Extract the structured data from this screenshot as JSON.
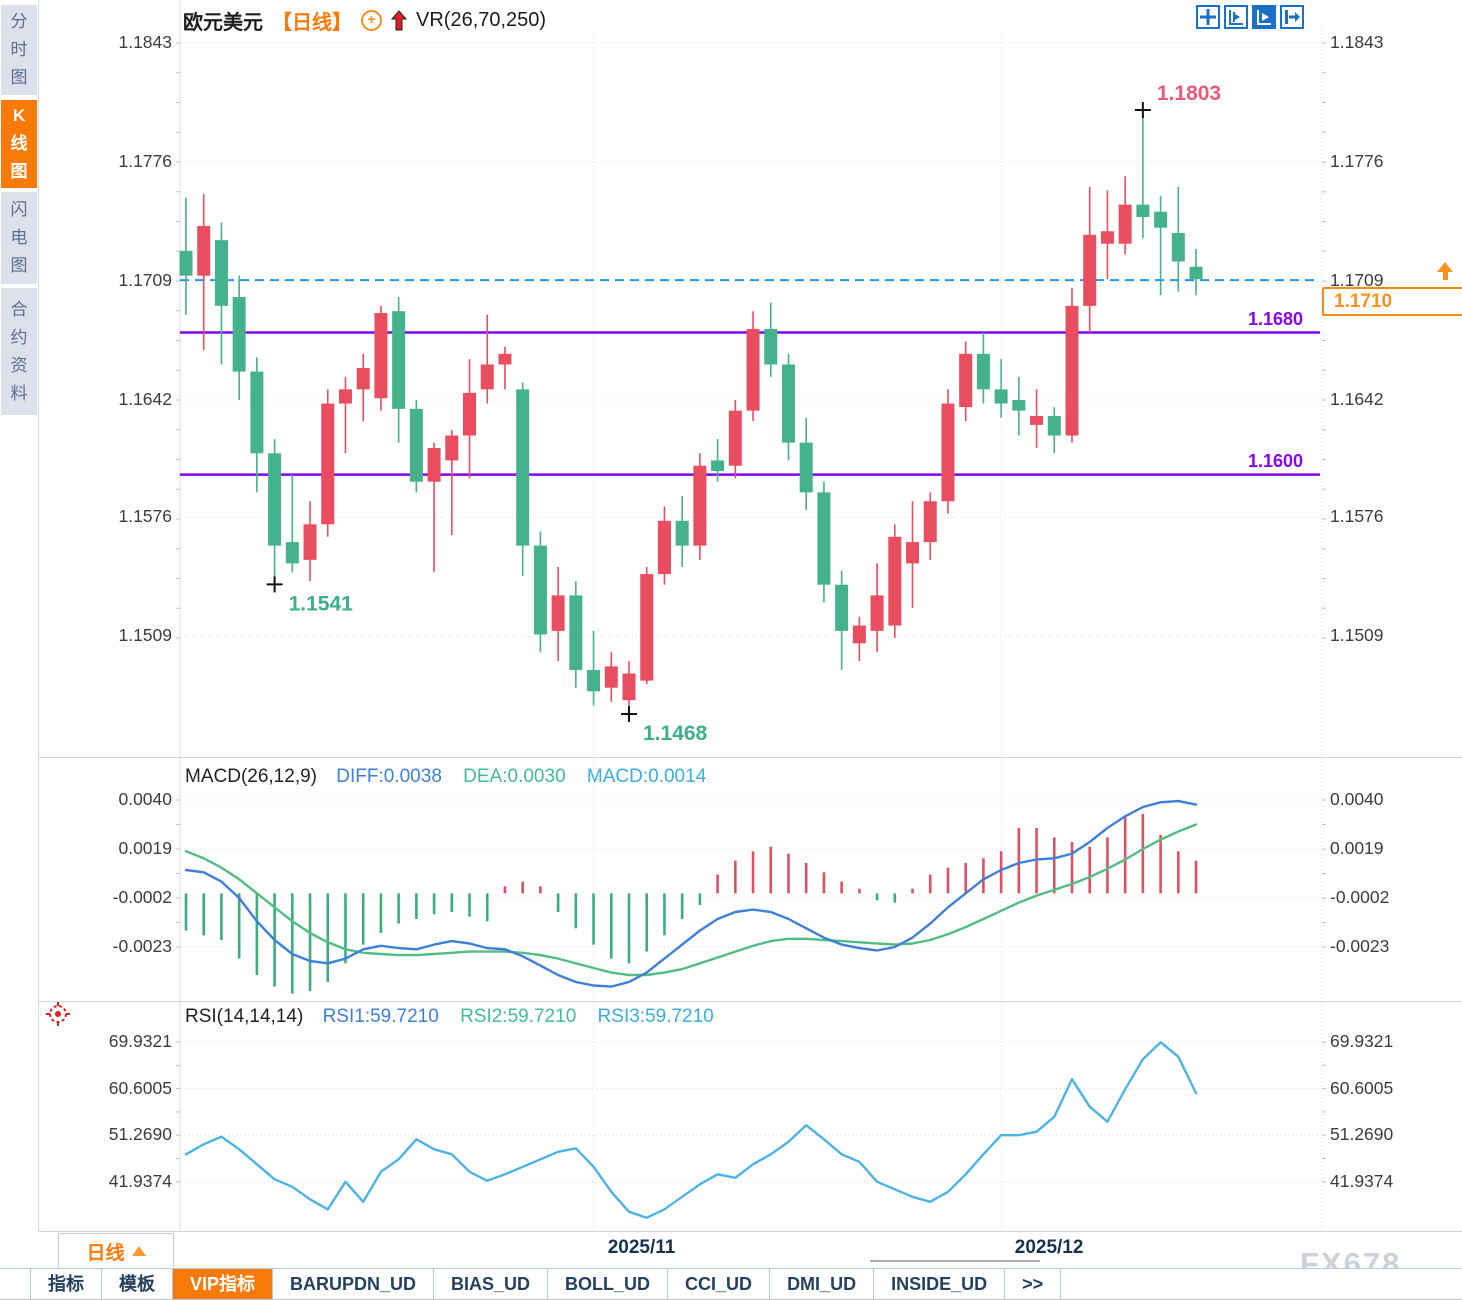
{
  "window": {
    "watermark": "FX678"
  },
  "sidebar": {
    "tabs": [
      {
        "label": "分时图",
        "active": false
      },
      {
        "label": "K线图",
        "active": true
      },
      {
        "label": "闪电图",
        "active": false
      },
      {
        "label": "合约资料",
        "active": false
      }
    ]
  },
  "title_bar": {
    "symbol": "欧元美元",
    "period": "【日线】",
    "plus_icon": "+",
    "indicator": "VR(26,70,250)"
  },
  "toolbar": {
    "icons": [
      "crosshair",
      "axis-scale",
      "auto-fit",
      "collapse-panel"
    ]
  },
  "price_marker": {
    "value": "1.1710"
  },
  "macd_panel": {
    "title": "MACD(26,12,9)",
    "diff_label": "DIFF:0.0038",
    "dea_label": "DEA:0.0030",
    "macd_label": "MACD:0.0014",
    "ticks": [
      "0.0040",
      "0.0019",
      "-0.0002",
      "-0.0023"
    ]
  },
  "rsi_panel": {
    "title": "RSI(14,14,14)",
    "rsi1_label": "RSI1:59.7210",
    "rsi2_label": "RSI2:59.7210",
    "rsi3_label": "RSI3:59.7210",
    "ticks": [
      "69.9321",
      "60.6005",
      "51.2690",
      "41.9374"
    ]
  },
  "main_axis": {
    "ticks": [
      "1.1843",
      "1.1776",
      "1.1709",
      "1.1642",
      "1.1576",
      "1.1509"
    ]
  },
  "bottom_bar": {
    "period_button": "日线",
    "tabs": [
      "指标",
      "模板",
      "VIP指标",
      "BARUPDN_UD",
      "BIAS_UD",
      "BOLL_UD",
      "CCI_UD",
      "DMI_UD",
      "INSIDE_UD",
      ">>"
    ],
    "active_tab": "VIP指标"
  },
  "chart_data": {
    "type": "candlestick",
    "title": "欧元美元 日线 VR(26,70,250)",
    "price_ticks": [
      1.1843,
      1.1776,
      1.1709,
      1.1642,
      1.1576,
      1.1509
    ],
    "current_price_line": 1.17095,
    "support_lines": [
      {
        "price": 1.168,
        "label": "1.1680"
      },
      {
        "price": 1.16,
        "label": "1.1600"
      }
    ],
    "annotations": [
      {
        "index": 5,
        "price": 1.1541,
        "label": "1.1541",
        "placement": "below",
        "color": "#3cb08b"
      },
      {
        "index": 25,
        "price": 1.1468,
        "label": "1.1468",
        "placement": "below",
        "color": "#3cb08b"
      },
      {
        "index": 54,
        "price": 1.1803,
        "label": "1.1803",
        "placement": "above",
        "color": "#e85a77"
      }
    ],
    "x_labels": [
      {
        "text": "2025/11",
        "index": 23
      },
      {
        "text": "2025/12",
        "index": 46
      }
    ],
    "colors": {
      "up": "#e94d60",
      "down": "#44b28a",
      "hist_up": "#e05062",
      "hist_down": "#3aaf7c",
      "diff": "#3d7fd9",
      "dea": "#52bd82",
      "rsi": "#4cb3e6",
      "grid": "#dcdcdc",
      "support": "#8205ee",
      "current": "#2196f3"
    },
    "candles": [
      [
        1.1726,
        1.1756,
        1.169,
        1.1712
      ],
      [
        1.1712,
        1.1758,
        1.167,
        1.174
      ],
      [
        1.1732,
        1.1742,
        1.1662,
        1.1695
      ],
      [
        1.17,
        1.1712,
        1.1642,
        1.1658
      ],
      [
        1.1658,
        1.1666,
        1.159,
        1.1612
      ],
      [
        1.1612,
        1.162,
        1.1541,
        1.156
      ],
      [
        1.1562,
        1.16,
        1.1545,
        1.155
      ],
      [
        1.1552,
        1.1585,
        1.154,
        1.1572
      ],
      [
        1.1572,
        1.1648,
        1.1565,
        1.164
      ],
      [
        1.164,
        1.1655,
        1.1612,
        1.1648
      ],
      [
        1.1648,
        1.1668,
        1.163,
        1.166
      ],
      [
        1.1643,
        1.1695,
        1.1636,
        1.1691
      ],
      [
        1.1692,
        1.17,
        1.1618,
        1.1637
      ],
      [
        1.1637,
        1.1642,
        1.159,
        1.1596
      ],
      [
        1.1596,
        1.1618,
        1.1545,
        1.1615
      ],
      [
        1.1608,
        1.1625,
        1.1566,
        1.1622
      ],
      [
        1.1622,
        1.1665,
        1.1598,
        1.1646
      ],
      [
        1.1648,
        1.169,
        1.164,
        1.1662
      ],
      [
        1.1662,
        1.1672,
        1.1648,
        1.1668
      ],
      [
        1.1648,
        1.1652,
        1.1543,
        1.156
      ],
      [
        1.156,
        1.1568,
        1.15,
        1.151
      ],
      [
        1.1512,
        1.1548,
        1.1495,
        1.1532
      ],
      [
        1.1532,
        1.154,
        1.148,
        1.149
      ],
      [
        1.149,
        1.1512,
        1.147,
        1.1478
      ],
      [
        1.148,
        1.15,
        1.1472,
        1.1492
      ],
      [
        1.1473,
        1.1495,
        1.1468,
        1.1488
      ],
      [
        1.1484,
        1.1548,
        1.1482,
        1.1544
      ],
      [
        1.1544,
        1.1582,
        1.1538,
        1.1574
      ],
      [
        1.1574,
        1.1588,
        1.1548,
        1.156
      ],
      [
        1.156,
        1.1612,
        1.1552,
        1.1605
      ],
      [
        1.1608,
        1.162,
        1.1596,
        1.1602
      ],
      [
        1.1605,
        1.1642,
        1.1598,
        1.1636
      ],
      [
        1.1636,
        1.1692,
        1.163,
        1.1682
      ],
      [
        1.1682,
        1.1697,
        1.1655,
        1.1662
      ],
      [
        1.1662,
        1.1668,
        1.1608,
        1.1618
      ],
      [
        1.1618,
        1.1632,
        1.158,
        1.159
      ],
      [
        1.159,
        1.1596,
        1.1528,
        1.1538
      ],
      [
        1.1538,
        1.1546,
        1.149,
        1.1512
      ],
      [
        1.1505,
        1.152,
        1.1495,
        1.1515
      ],
      [
        1.1512,
        1.155,
        1.15,
        1.1532
      ],
      [
        1.1515,
        1.1572,
        1.1508,
        1.1565
      ],
      [
        1.155,
        1.1585,
        1.1525,
        1.1562
      ],
      [
        1.1562,
        1.159,
        1.1552,
        1.1585
      ],
      [
        1.1585,
        1.1648,
        1.1578,
        1.164
      ],
      [
        1.1638,
        1.1675,
        1.163,
        1.1668
      ],
      [
        1.1668,
        1.168,
        1.164,
        1.1648
      ],
      [
        1.1648,
        1.1665,
        1.1632,
        1.164
      ],
      [
        1.1642,
        1.1655,
        1.1622,
        1.1636
      ],
      [
        1.1628,
        1.1648,
        1.1615,
        1.1633
      ],
      [
        1.1633,
        1.1638,
        1.1612,
        1.1622
      ],
      [
        1.1622,
        1.1705,
        1.1618,
        1.1695
      ],
      [
        1.1695,
        1.1762,
        1.168,
        1.1735
      ],
      [
        1.173,
        1.176,
        1.171,
        1.1737
      ],
      [
        1.173,
        1.1768,
        1.1724,
        1.1752
      ],
      [
        1.1752,
        1.1803,
        1.1733,
        1.1745
      ],
      [
        1.1748,
        1.1757,
        1.1701,
        1.1739
      ],
      [
        1.1736,
        1.1762,
        1.1703,
        1.172
      ],
      [
        1.1717,
        1.1727,
        1.1701,
        1.171
      ]
    ],
    "macd": {
      "ticks": [
        0.004,
        0.0019,
        -0.0002,
        -0.0023
      ],
      "hist": [
        -16,
        -18,
        -20,
        -28,
        -35,
        -40,
        -43,
        -42,
        -38,
        -30,
        -22,
        -17,
        -13,
        -11,
        -9,
        -8,
        -10,
        -12,
        3,
        5,
        3,
        -8,
        -15,
        -22,
        -28,
        -30,
        -25,
        -18,
        -11,
        -5,
        8,
        14,
        18,
        20,
        17,
        13,
        9,
        5,
        2,
        -3,
        -4,
        2,
        8,
        11,
        13,
        15,
        18,
        28,
        28,
        24,
        22,
        20,
        24,
        33,
        34,
        25,
        18,
        14
      ],
      "diff": [
        10,
        9,
        5,
        -2,
        -12,
        -20,
        -26,
        -29,
        -30,
        -28,
        -24,
        -22.5,
        -23.5,
        -24,
        -22,
        -20.5,
        -21.5,
        -23.5,
        -24,
        -27,
        -31,
        -35,
        -38,
        -39.5,
        -40,
        -38,
        -34,
        -28,
        -22,
        -16,
        -11,
        -8,
        -7,
        -8,
        -11,
        -15,
        -19,
        -22,
        -23.5,
        -24.5,
        -23,
        -19,
        -13,
        -6,
        0,
        6,
        10,
        13,
        14.5,
        15,
        17,
        22,
        28,
        33,
        37,
        39,
        39.5,
        38
      ],
      "dea": [
        18,
        15,
        11,
        6,
        0,
        -6,
        -12,
        -17,
        -21,
        -24,
        -25.5,
        -26,
        -26.5,
        -26.5,
        -26,
        -25.5,
        -25,
        -25,
        -25,
        -25.5,
        -26.5,
        -28,
        -30,
        -32,
        -34,
        -35,
        -35,
        -34,
        -32.5,
        -30,
        -27.5,
        -25,
        -22.5,
        -20.5,
        -19.5,
        -19.5,
        -20,
        -20.5,
        -21,
        -21.5,
        -22,
        -21.5,
        -20,
        -17.5,
        -14.5,
        -11,
        -7.5,
        -4,
        -1,
        1.5,
        4,
        7,
        10.5,
        14.5,
        19,
        23,
        26.5,
        29.5
      ]
    },
    "rsi": {
      "ticks": [
        69.9321,
        60.6005,
        51.269,
        41.9374
      ],
      "values": [
        47.5,
        49.5,
        51,
        48.5,
        45.5,
        42.5,
        41,
        38.5,
        36.5,
        42,
        38,
        44,
        46.5,
        50.5,
        48.5,
        47.5,
        44,
        42.2,
        43.5,
        45,
        46.5,
        48,
        48.7,
        45,
        40,
        36,
        34.8,
        36.5,
        39,
        41.5,
        43.5,
        42.8,
        45.5,
        47.5,
        50,
        53.3,
        50.5,
        47.5,
        46,
        42,
        40.5,
        39,
        38,
        40,
        43.5,
        47.5,
        51.3,
        51.3,
        52,
        55,
        62.5,
        57,
        54,
        60.5,
        66.5,
        69.9,
        67,
        59.72
      ]
    }
  }
}
